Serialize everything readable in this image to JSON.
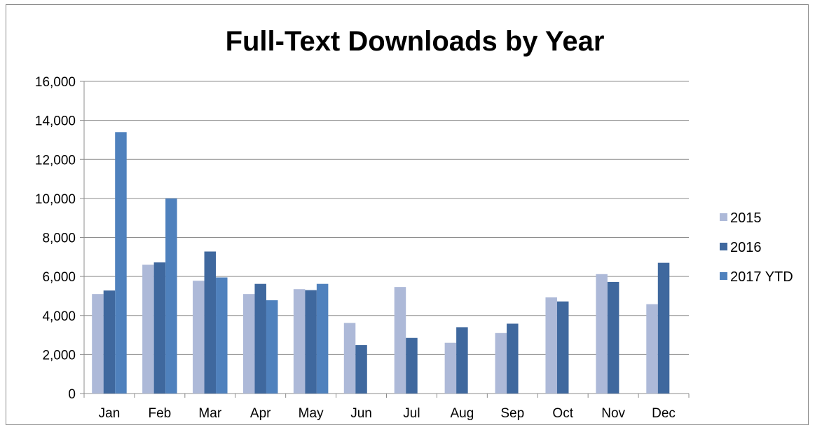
{
  "chart_data": {
    "type": "bar",
    "title": "Full-Text Downloads by Year",
    "categories": [
      "Jan",
      "Feb",
      "Mar",
      "Apr",
      "May",
      "Jun",
      "Jul",
      "Aug",
      "Sep",
      "Oct",
      "Nov",
      "Dec"
    ],
    "series": [
      {
        "name": "2015",
        "color": "#adb9d8",
        "values": [
          5100,
          6600,
          5780,
          5100,
          5350,
          3620,
          5460,
          2600,
          3100,
          4930,
          6120,
          4580
        ]
      },
      {
        "name": "2016",
        "color": "#3f689e",
        "values": [
          5280,
          6720,
          7280,
          5620,
          5300,
          2480,
          2850,
          3400,
          3580,
          4720,
          5720,
          6700
        ]
      },
      {
        "name": "2017 YTD",
        "color": "#4f81bd",
        "values": [
          13400,
          10000,
          5950,
          4780,
          5620,
          null,
          null,
          null,
          null,
          null,
          null,
          null
        ]
      }
    ],
    "ylim": [
      0,
      16000
    ],
    "yticks": [
      "0",
      "2,000",
      "4,000",
      "6,000",
      "8,000",
      "10,000",
      "12,000",
      "14,000",
      "16,000"
    ],
    "ytick_values": [
      0,
      2000,
      4000,
      6000,
      8000,
      10000,
      12000,
      14000,
      16000
    ],
    "grid": true,
    "legend_position": "right"
  }
}
